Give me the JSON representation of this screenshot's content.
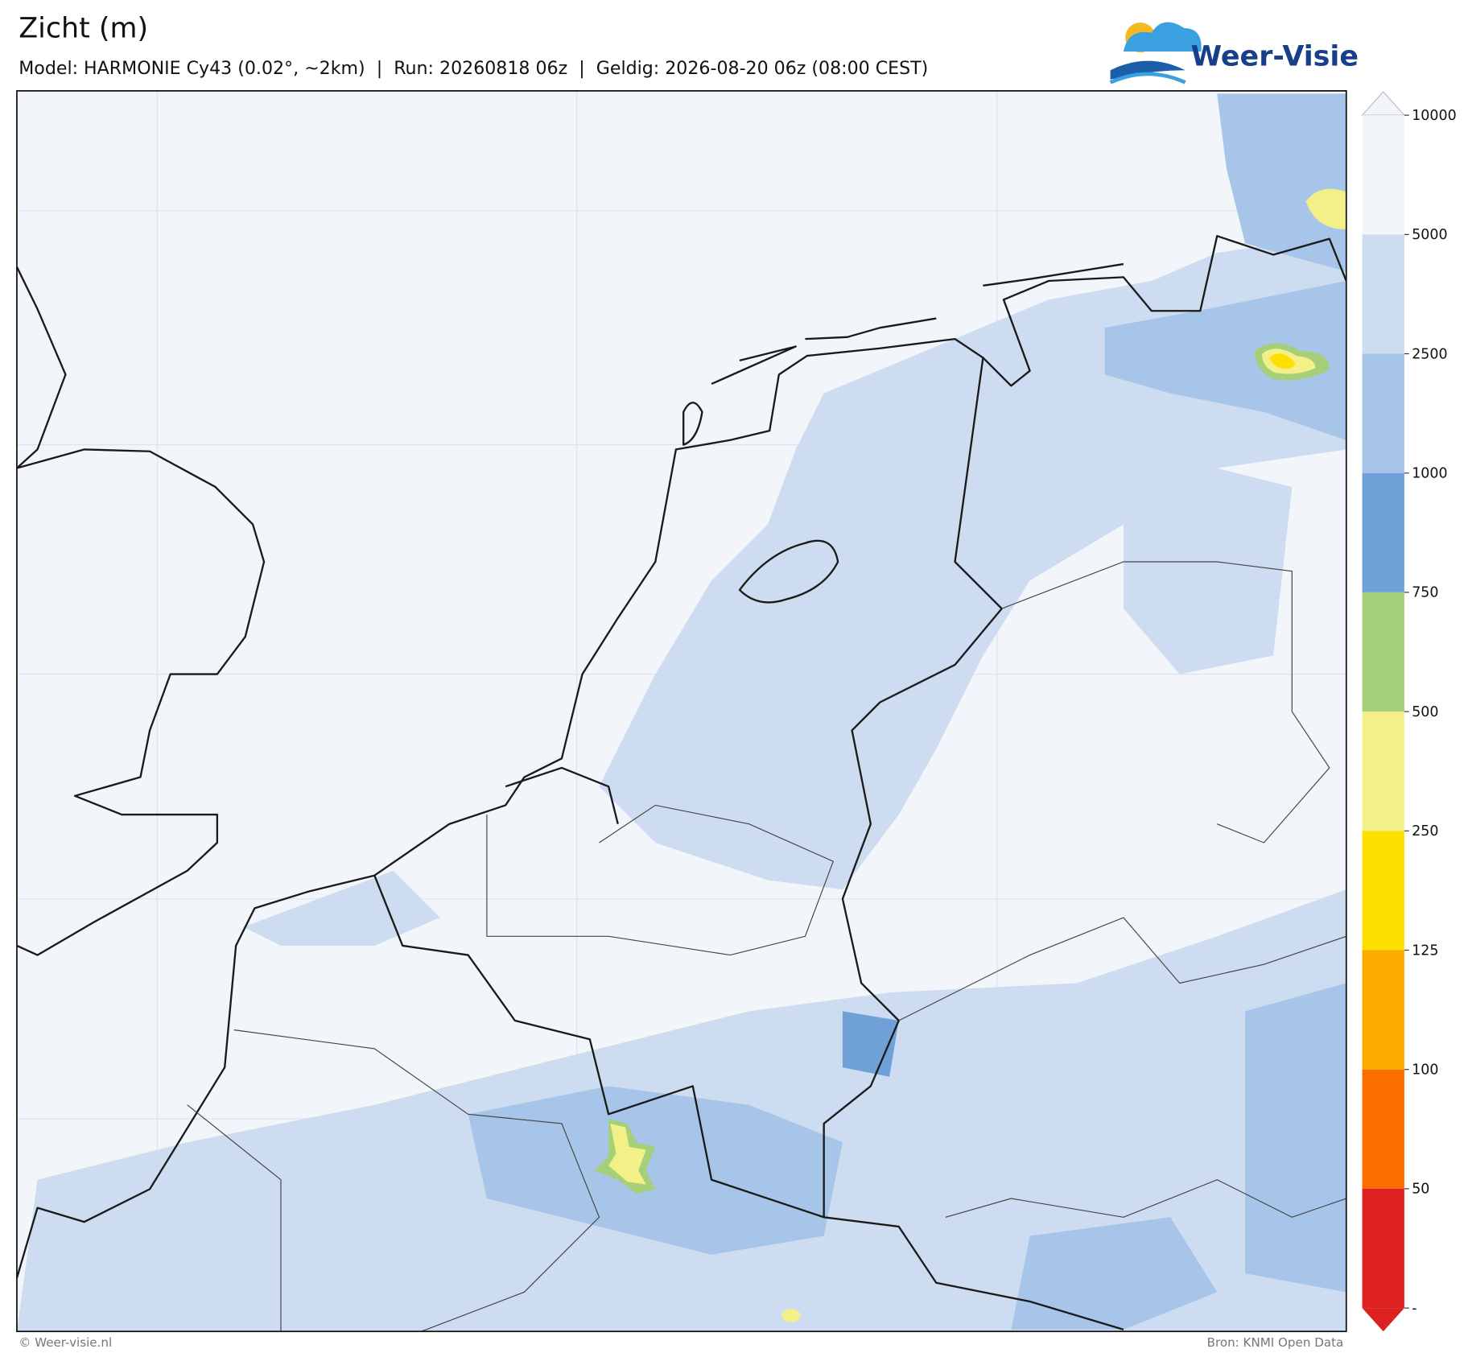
{
  "header": {
    "title": "Zicht (m)",
    "subtitle": "Model: HARMONIE Cy43 (0.02°, ~2km)  |  Run: 20260818 06z  |  Geldig: 2026-08-20 06z (08:00 CEST)",
    "logo": "Weer-Visie"
  },
  "colorbar": {
    "labels": [
      10000,
      5000,
      2500,
      1000,
      750,
      500,
      250,
      125,
      100,
      50,
      "-"
    ],
    "colors": [
      "#f2f5fa",
      "#cddcf0",
      "#a7c5e8",
      "#6fa0d8",
      "#a6cf7a",
      "#f4f088",
      "#fde000",
      "#fdaa00",
      "#fd6e00",
      "#dd2020"
    ],
    "extend_top": "#f2f5fa",
    "extend_bottom": "#dd2020"
  },
  "footer": {
    "left": "© Weer-visie.nl",
    "right": "Bron: KNMI Open Data"
  }
}
